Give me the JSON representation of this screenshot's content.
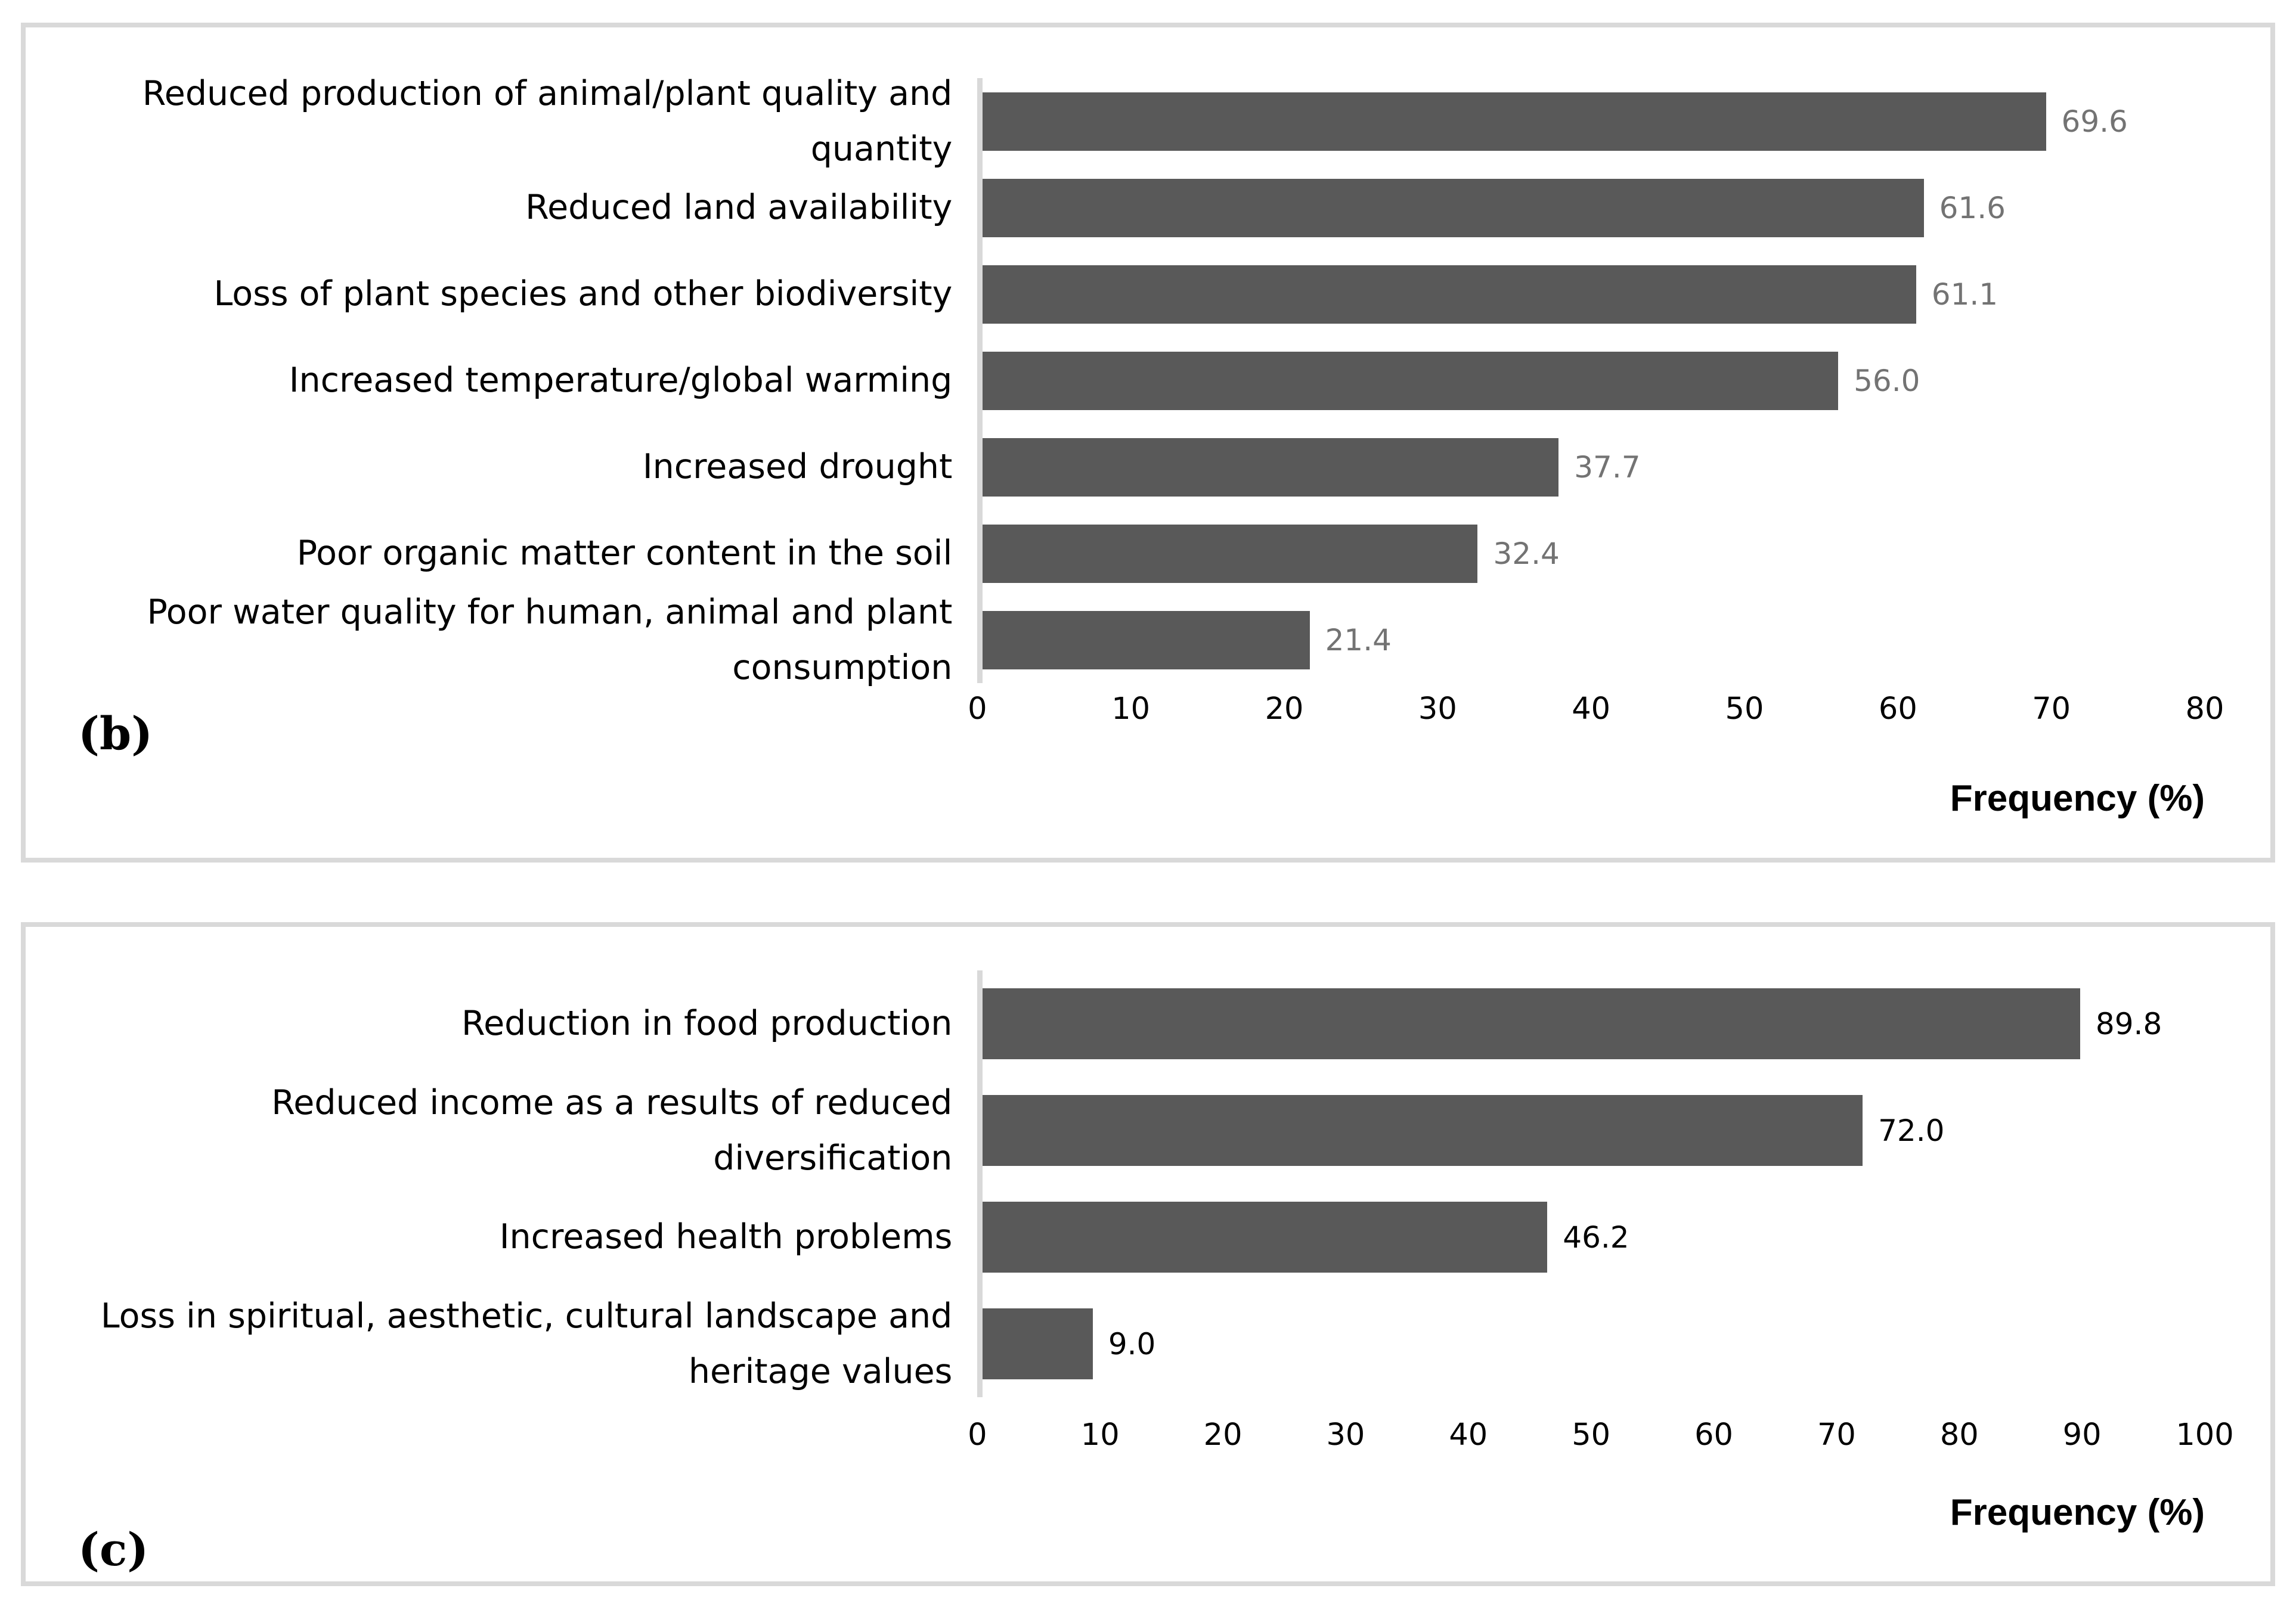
{
  "figure": {
    "background_color": "#ffffff",
    "bar_color": "#595959",
    "panel_border_color": "#d9d9d9",
    "axis_line_color": "#d9d9d9"
  },
  "chart_data": [
    {
      "type": "bar",
      "orientation": "horizontal",
      "panel_label": "(b)",
      "xlabel": "Frequency (%)",
      "xlim": [
        0,
        80
      ],
      "xticks": [
        "0",
        "10",
        "20",
        "30",
        "40",
        "50",
        "60",
        "70",
        "80"
      ],
      "grid": false,
      "legend": "none",
      "categories": [
        "Reduced production of animal/plant quality and quantity",
        "Reduced land availability",
        "Loss of plant species and other biodiversity",
        "Increased temperature/global warming",
        "Increased drought",
        "Poor organic matter content in the soil",
        "Poor water quality for human, animal and plant consumption"
      ],
      "values": [
        69.6,
        61.6,
        61.1,
        56.0,
        37.7,
        32.4,
        21.4
      ],
      "value_labels": [
        "69.6",
        "61.6",
        "61.1",
        "56.0",
        "37.7",
        "32.4",
        "21.4"
      ],
      "value_label_color": "#737373"
    },
    {
      "type": "bar",
      "orientation": "horizontal",
      "panel_label": "(c)",
      "xlabel": "Frequency (%)",
      "xlim": [
        0,
        100
      ],
      "xticks": [
        "0",
        "10",
        "20",
        "30",
        "40",
        "50",
        "60",
        "70",
        "80",
        "90",
        "100"
      ],
      "grid": false,
      "legend": "none",
      "categories": [
        "Reduction in food production",
        "Reduced income as a results of reduced diversification",
        "Increased health problems",
        "Loss in spiritual, aesthetic, cultural landscape and heritage values"
      ],
      "values": [
        89.8,
        72.0,
        46.2,
        9.0
      ],
      "value_labels": [
        "89.8",
        "72.0",
        "46.2",
        "9.0"
      ],
      "value_label_color": "#000000"
    }
  ]
}
